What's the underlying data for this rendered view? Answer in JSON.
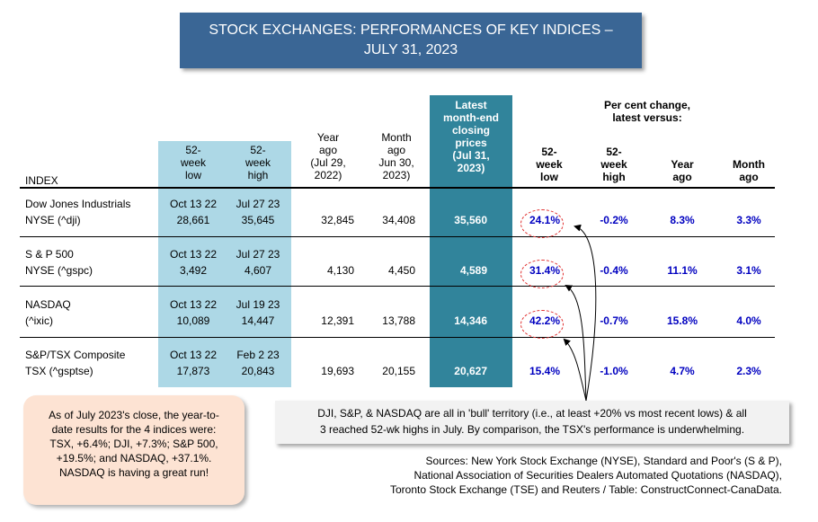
{
  "title": {
    "line1": "STOCK EXCHANGES: PERFORMANCES OF KEY INDICES –",
    "line2": "JULY 31, 2023"
  },
  "header": {
    "index": "INDEX",
    "low52": [
      "52-",
      "week",
      "low"
    ],
    "high52": [
      "52-",
      "week",
      "high"
    ],
    "year_ago": [
      "Year",
      "ago",
      "(Jul 29,",
      "2022)"
    ],
    "month_ago": [
      "Month",
      "ago",
      "Jun 30,",
      "2023)"
    ],
    "latest": [
      "Latest",
      "month-end",
      "closing",
      "prices",
      "(Jul 31,",
      "2023)"
    ],
    "pct_group": [
      "Per cent change,",
      "latest versus:"
    ],
    "pct_low": [
      "52-",
      "week",
      "low"
    ],
    "pct_high": [
      "52-",
      "week",
      "high"
    ],
    "pct_year": [
      "Year",
      "ago"
    ],
    "pct_month": [
      "Month",
      "ago"
    ]
  },
  "chart_data": {
    "type": "table",
    "rows": [
      {
        "name1": "Dow Jones Industrials",
        "name2": "NYSE (^dji)",
        "low_date": "Oct 13 22",
        "low": "28,661",
        "high_date": "Jul 27 23",
        "high": "35,645",
        "year_ago": "32,845",
        "month_ago": "34,408",
        "latest": "35,560",
        "pct_low": "24.1%",
        "pct_high": "-0.2%",
        "pct_year": "8.3%",
        "pct_month": "3.3%"
      },
      {
        "name1": "S & P 500",
        "name2": "NYSE (^gspc)",
        "low_date": "Oct 13 22",
        "low": "3,492",
        "high_date": "Jul 27 23",
        "high": "4,607",
        "year_ago": "4,130",
        "month_ago": "4,450",
        "latest": "4,589",
        "pct_low": "31.4%",
        "pct_high": "-0.4%",
        "pct_year": "11.1%",
        "pct_month": "3.1%"
      },
      {
        "name1": "NASDAQ",
        "name2": "(^ixic)",
        "low_date": "Oct 13 22",
        "low": "10,089",
        "high_date": "Jul 19 23",
        "high": "14,447",
        "year_ago": "12,391",
        "month_ago": "13,788",
        "latest": "14,346",
        "pct_low": "42.2%",
        "pct_high": "-0.7%",
        "pct_year": "15.8%",
        "pct_month": "4.0%"
      },
      {
        "name1": "S&P/TSX Composite",
        "name2": "TSX (^gsptse)",
        "low_date": "Oct 13 22",
        "low": "17,873",
        "high_date": "Feb 2 23",
        "high": "20,843",
        "year_ago": "19,693",
        "month_ago": "20,155",
        "latest": "20,627",
        "pct_low": "15.4%",
        "pct_high": "-1.0%",
        "pct_year": "4.7%",
        "pct_month": "2.3%"
      }
    ]
  },
  "notes": {
    "left": [
      "As of July 2023's close, the year-to-",
      "date results for the 4 indices were:",
      "TSX, +6.4%; DJI, +7.3%; S&P 500,",
      "+19.5%; and NASDAQ, +37.1%.",
      "NASDAQ is having a great run!"
    ],
    "mid": [
      "DJI, S&P, & NASDAQ are all in 'bull' territory (i.e., at least +20% vs most recent lows) & all",
      "3 reached 52-wk highs in July. By comparison, the TSX's performance is underwhelming."
    ],
    "sources": [
      "Sources: New York Stock Exchange (NYSE), Standard and Poor's (S & P),",
      "National Association of Securities Dealers Automated Quotations (NASDAQ),",
      "Toronto Stock Exchange (TSE) and Reuters / Table: ConstructConnect-CanaData."
    ]
  },
  "colors": {
    "title_bg": "#3a6695",
    "band_blue": "#add8e6",
    "band_teal": "#31849b",
    "pct_text": "#0000c0",
    "ring": "#e03030"
  }
}
